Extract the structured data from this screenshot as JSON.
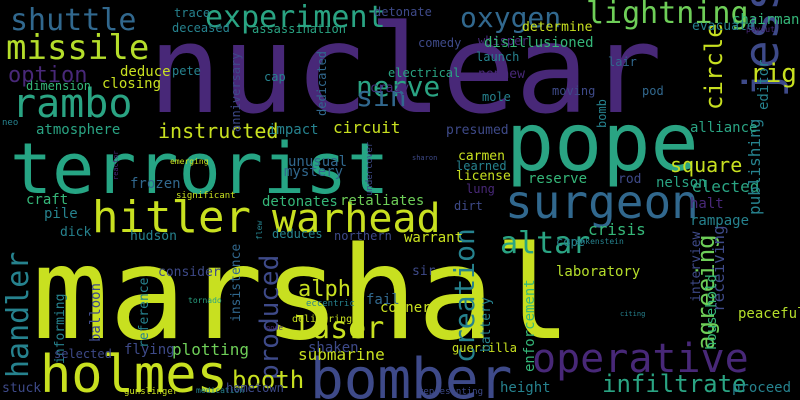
{
  "background_color": "#000000",
  "palette": {
    "purple": "#482878",
    "darkblue": "#3e4a89",
    "blue": "#31688e",
    "teal": "#26828e",
    "green": "#1f9e89",
    "lightgreen": "#35b779",
    "lime": "#6ece58",
    "yellow": "#b5de2b",
    "brightyellow": "#c8e020"
  },
  "words": [
    {
      "text": "nuclear",
      "color": "#482878"
    },
    {
      "text": "marshal",
      "color": "#c8e020"
    },
    {
      "text": "terrorist",
      "color": "#26a584"
    },
    {
      "text": "pope",
      "color": "#2aa483"
    },
    {
      "text": "hitler",
      "color": "#c8e020"
    },
    {
      "text": "warhead",
      "color": "#c8e020"
    },
    {
      "text": "bomber",
      "color": "#3e4a89"
    },
    {
      "text": "operative",
      "color": "#482878"
    },
    {
      "text": "surgeon",
      "color": "#31688e"
    },
    {
      "text": "holmes",
      "color": "#c8e020"
    },
    {
      "text": "jessica",
      "color": "#3e4a89"
    },
    {
      "text": "rambo",
      "color": "#2aa483"
    },
    {
      "text": "missile",
      "color": "#b5de2b"
    },
    {
      "text": "shuttle",
      "color": "#31688e"
    },
    {
      "text": "experiment",
      "color": "#2aa483"
    },
    {
      "text": "oxygen",
      "color": "#31688e"
    },
    {
      "text": "lightning",
      "color": "#6ece58"
    },
    {
      "text": "handler",
      "color": "#26828e"
    },
    {
      "text": "altar",
      "color": "#2aa483"
    },
    {
      "text": "laser",
      "color": "#c8e020"
    },
    {
      "text": "alpha",
      "color": "#c8e020"
    },
    {
      "text": "creation",
      "color": "#26828e"
    },
    {
      "text": "produced",
      "color": "#3e4a89"
    },
    {
      "text": "booth",
      "color": "#c8e020"
    },
    {
      "text": "infiltrate",
      "color": "#2aa483"
    },
    {
      "text": "agreeing",
      "color": "#6ece58"
    },
    {
      "text": "circle",
      "color": "#c8e020"
    },
    {
      "text": "rig",
      "color": "#c8e020"
    },
    {
      "text": "nerve",
      "color": "#2aa483"
    },
    {
      "text": "sin",
      "color": "#31688e"
    },
    {
      "text": "option",
      "color": "#482878"
    },
    {
      "text": "instructed",
      "color": "#c8e020"
    },
    {
      "text": "chairman",
      "color": "#35b779"
    },
    {
      "text": "square",
      "color": "#c8e020"
    },
    {
      "text": "elected",
      "color": "#2aa483"
    },
    {
      "text": "publishing",
      "color": "#26828e"
    },
    {
      "text": "editor",
      "color": "#26828e"
    },
    {
      "text": "alliance",
      "color": "#2aa483"
    },
    {
      "text": "receiving",
      "color": "#3e4a89"
    },
    {
      "text": "nelson",
      "color": "#2aa483"
    },
    {
      "text": "halt",
      "color": "#482878"
    },
    {
      "text": "rampage",
      "color": "#26828e"
    },
    {
      "text": "reserve",
      "color": "#35b779"
    },
    {
      "text": "rod",
      "color": "#3e4a89"
    },
    {
      "text": "craft",
      "color": "#35b779"
    },
    {
      "text": "pile",
      "color": "#26828e"
    },
    {
      "text": "dick",
      "color": "#26828e"
    },
    {
      "text": "hudson",
      "color": "#26828e"
    },
    {
      "text": "detonates",
      "color": "#35b779"
    },
    {
      "text": "retaliates",
      "color": "#6ece58"
    },
    {
      "text": "submarine",
      "color": "#c8e020"
    },
    {
      "text": "shaken",
      "color": "#3e4a89"
    },
    {
      "text": "plotting",
      "color": "#6ece58"
    },
    {
      "text": "flying",
      "color": "#3e4a89"
    },
    {
      "text": "stuck",
      "color": "#3e4a89"
    },
    {
      "text": "height",
      "color": "#26828e"
    },
    {
      "text": "proceed",
      "color": "#26828e"
    },
    {
      "text": "peaceful",
      "color": "#b5de2b"
    },
    {
      "text": "corner",
      "color": "#c8e020"
    },
    {
      "text": "guerrilla",
      "color": "#c8e020"
    },
    {
      "text": "laboratory",
      "color": "#b5de2b"
    },
    {
      "text": "crisis",
      "color": "#35b779"
    },
    {
      "text": "warrant",
      "color": "#c8e020"
    },
    {
      "text": "deduces",
      "color": "#26828e"
    },
    {
      "text": "northern",
      "color": "#3e4a89"
    },
    {
      "text": "fail",
      "color": "#31688e"
    },
    {
      "text": "consider",
      "color": "#3e4a89"
    },
    {
      "text": "reference",
      "color": "#26828e"
    },
    {
      "text": "insistence",
      "color": "#31688e"
    },
    {
      "text": "enforcement",
      "color": "#35b779"
    },
    {
      "text": "battery",
      "color": "#26828e"
    },
    {
      "text": "informing",
      "color": "#26828e"
    },
    {
      "text": "balloon",
      "color": "#3e4a89"
    },
    {
      "text": "household",
      "color": "#35b779"
    },
    {
      "text": "interview",
      "color": "#3e4a89"
    },
    {
      "text": "frozen",
      "color": "#31688e"
    },
    {
      "text": "unusual",
      "color": "#31688e"
    },
    {
      "text": "mystery",
      "color": "#31688e"
    },
    {
      "text": "circuit",
      "color": "#c8e020"
    },
    {
      "text": "impact",
      "color": "#26828e"
    },
    {
      "text": "atmosphere",
      "color": "#2aa483"
    },
    {
      "text": "presumed",
      "color": "#3e4a89"
    },
    {
      "text": "carmen",
      "color": "#c8e020"
    },
    {
      "text": "learned",
      "color": "#26828e"
    },
    {
      "text": "license",
      "color": "#c8e020"
    },
    {
      "text": "lung",
      "color": "#482878"
    },
    {
      "text": "dirt",
      "color": "#3e4a89"
    },
    {
      "text": "cope",
      "color": "#26828e"
    },
    {
      "text": "sir",
      "color": "#3e4a89"
    },
    {
      "text": "deduce",
      "color": "#c8e020"
    },
    {
      "text": "dimension",
      "color": "#35b779"
    },
    {
      "text": "closing",
      "color": "#c8e020"
    },
    {
      "text": "pete",
      "color": "#26828e"
    },
    {
      "text": "cap",
      "color": "#26828e"
    },
    {
      "text": "dedicated",
      "color": "#31688e"
    },
    {
      "text": "crazy",
      "color": "#482878"
    },
    {
      "text": "electrical",
      "color": "#2aa483"
    },
    {
      "text": "nephew",
      "color": "#482878"
    },
    {
      "text": "lair",
      "color": "#31688e"
    },
    {
      "text": "pod",
      "color": "#31688e"
    },
    {
      "text": "moving",
      "color": "#3e4a89"
    },
    {
      "text": "mole",
      "color": "#26828e"
    },
    {
      "text": "bomb",
      "color": "#26828e"
    },
    {
      "text": "launch",
      "color": "#26828e"
    },
    {
      "text": "whisper",
      "color": "#482878"
    },
    {
      "text": "comedy",
      "color": "#3e4a89"
    },
    {
      "text": "disillusioned",
      "color": "#35b779"
    },
    {
      "text": "determine",
      "color": "#c8e020"
    },
    {
      "text": "detonate",
      "color": "#3e4a89"
    },
    {
      "text": "assassination",
      "color": "#2aa483"
    },
    {
      "text": "trace",
      "color": "#26828e"
    },
    {
      "text": "deceased",
      "color": "#26828e"
    },
    {
      "text": "anniversary",
      "color": "#3e4a89"
    },
    {
      "text": "evacuate",
      "color": "#26828e"
    },
    {
      "text": "payout",
      "color": "#482878"
    },
    {
      "text": "reactor",
      "color": "#482878"
    },
    {
      "text": "emerging",
      "color": "#c8e020"
    },
    {
      "text": "significant",
      "color": "#c8e020"
    },
    {
      "text": "sharon",
      "color": "#3e4a89"
    },
    {
      "text": "undercover",
      "color": "#3e4a89"
    },
    {
      "text": "trankenstein",
      "color": "#26828e"
    },
    {
      "text": "delivering",
      "color": "#c8e020"
    },
    {
      "text": "eccentric",
      "color": "#26828e"
    },
    {
      "text": "tornado",
      "color": "#2aa483"
    },
    {
      "text": "citing",
      "color": "#26828e"
    },
    {
      "text": "gunslinger",
      "color": "#c8e020"
    },
    {
      "text": "medication",
      "color": "#26828e"
    },
    {
      "text": "hometown",
      "color": "#3e4a89"
    },
    {
      "text": "representing",
      "color": "#3e4a89"
    },
    {
      "text": "selected",
      "color": "#3e4a89"
    },
    {
      "text": "neo",
      "color": "#26828e"
    },
    {
      "text": "flew",
      "color": "#26828e"
    },
    {
      "text": "nose",
      "color": "#482878"
    }
  ]
}
